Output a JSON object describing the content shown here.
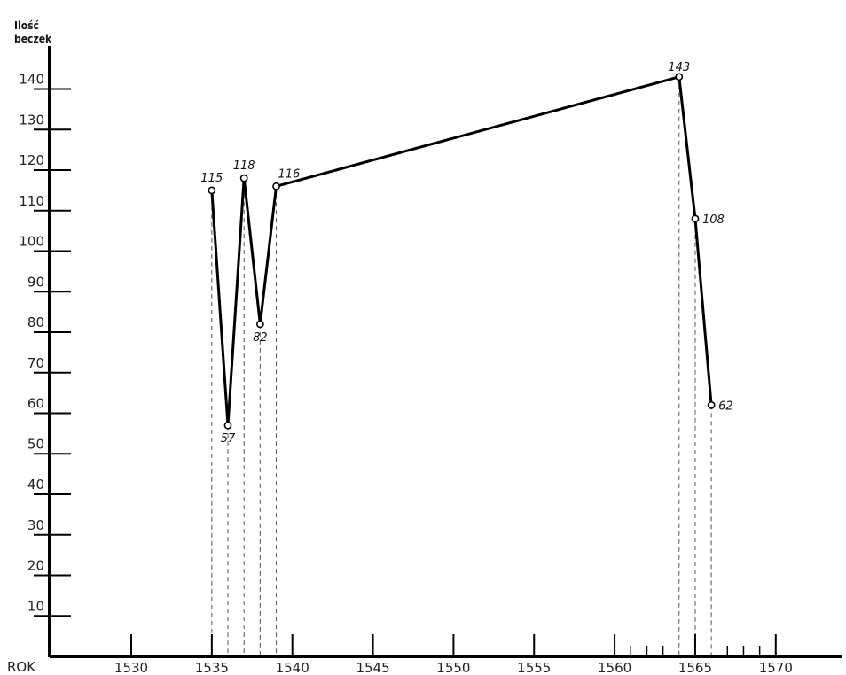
{
  "chart_data": {
    "type": "line",
    "ylabel_lines": [
      "Ilość",
      "beczek"
    ],
    "xlabel": "ROK",
    "xlim": [
      1525,
      1571
    ],
    "ylim": [
      0,
      150
    ],
    "x_ticks": [
      1530,
      1535,
      1540,
      1545,
      1550,
      1555,
      1560,
      1565,
      1570
    ],
    "x_minor_ticks": [
      1561,
      1562,
      1563,
      1567,
      1568,
      1569
    ],
    "y_ticks": [
      10,
      20,
      30,
      40,
      50,
      60,
      70,
      80,
      90,
      100,
      110,
      120,
      130,
      140
    ],
    "grid": false,
    "legend": "none",
    "series": [
      {
        "x": [
          1535,
          1536,
          1537,
          1538,
          1539,
          1564,
          1565,
          1566
        ],
        "values": [
          115,
          57,
          118,
          82,
          116,
          143,
          108,
          62
        ],
        "labels": [
          "115",
          "57",
          "118",
          "82",
          "116",
          "143",
          "108",
          "62"
        ]
      }
    ]
  }
}
